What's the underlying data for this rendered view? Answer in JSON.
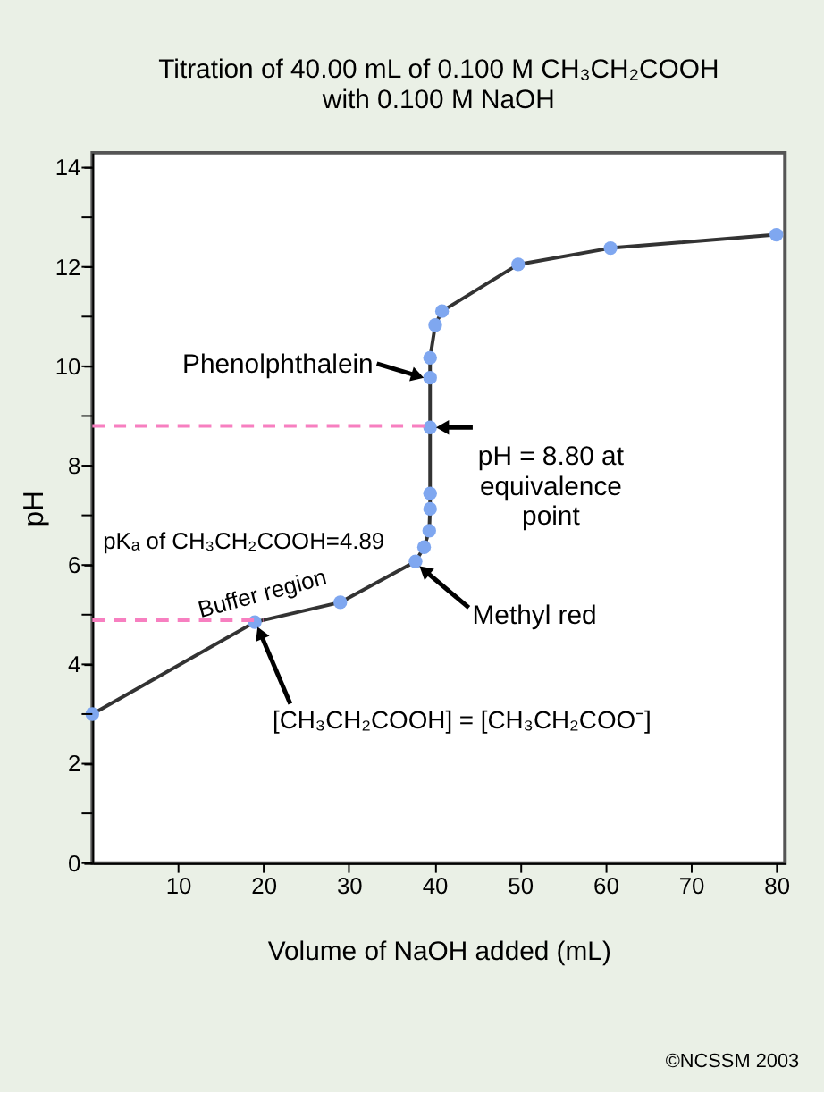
{
  "chart_data": {
    "type": "line",
    "title": [
      "Titration of 40.00 mL of 0.100 M CH₃CH₂COOH",
      "with 0.100 M NaOH"
    ],
    "xlabel": "Volume of NaOH added (mL)",
    "ylabel": "pH",
    "x": [
      0,
      19,
      29,
      37.8,
      38.8,
      39.4,
      39.5,
      39.5,
      39.5,
      39.5,
      39.5,
      40.1,
      40.9,
      49.8,
      60.6,
      80
    ],
    "series": [
      {
        "color": "#333333",
        "values": [
          3.0,
          4.85,
          5.25,
          6.07,
          6.36,
          6.69,
          7.13,
          7.44,
          8.77,
          9.77,
          10.17,
          10.83,
          11.11,
          12.05,
          12.38,
          12.65
        ],
        "colors": [
          "#7fa7f0",
          "#7fa7f0",
          "#7fa7f0",
          "#7fa7f0",
          "#7fa7f0",
          "#7fa7f0",
          "#7fa7f0",
          "#7fa7f0",
          "#7fa7f0",
          "#7fa7f0",
          "#7fa7f0",
          "#7fa7f0",
          "#7fa7f0",
          "#7fa7f0",
          "#7fa7f0",
          "#7fa7f0"
        ]
      }
    ],
    "marker": "circle",
    "xlim": [
      0,
      81
    ],
    "xticks": [
      10,
      20,
      30,
      40,
      50,
      60,
      70,
      80
    ],
    "ylim": [
      0,
      14.3
    ],
    "yticks": [
      0,
      {
        "value": 1,
        "label": null
      },
      2,
      {
        "value": 3,
        "label": null
      },
      4,
      {
        "value": 5,
        "label": null
      },
      6,
      {
        "value": 7,
        "label": null
      },
      8,
      {
        "value": 9,
        "label": null
      },
      10,
      {
        "value": 11,
        "label": null
      },
      12,
      {
        "value": 13,
        "label": null
      },
      14
    ],
    "ref_lines": [
      {
        "axis": "y",
        "value": 8.8,
        "label": null,
        "color": "#f77fc0",
        "line_style": "dashed"
      },
      {
        "axis": "y",
        "value": 4.89,
        "label": "pKₐ of CH₃CH₂COOH=4.89",
        "color": "#f77fc0",
        "line_style": "dashed"
      }
    ],
    "annotations": [
      {
        "text": "Phenolphthalein",
        "x": 39.5,
        "y": 9.77
      },
      {
        "text": "pH = 8.80 at\nequivalence\npoint",
        "x": 39.5,
        "y": 8.77
      },
      "Buffer region",
      {
        "text": "Methyl red",
        "x": 37.8,
        "y": 6.07
      },
      {
        "text": "[CH₃CH₂COOH] = [CH₃CH₂COO⁻]",
        "x": 19,
        "y": 4.85
      },
      "©NCSSM 2003"
    ],
    "grid": false
  }
}
